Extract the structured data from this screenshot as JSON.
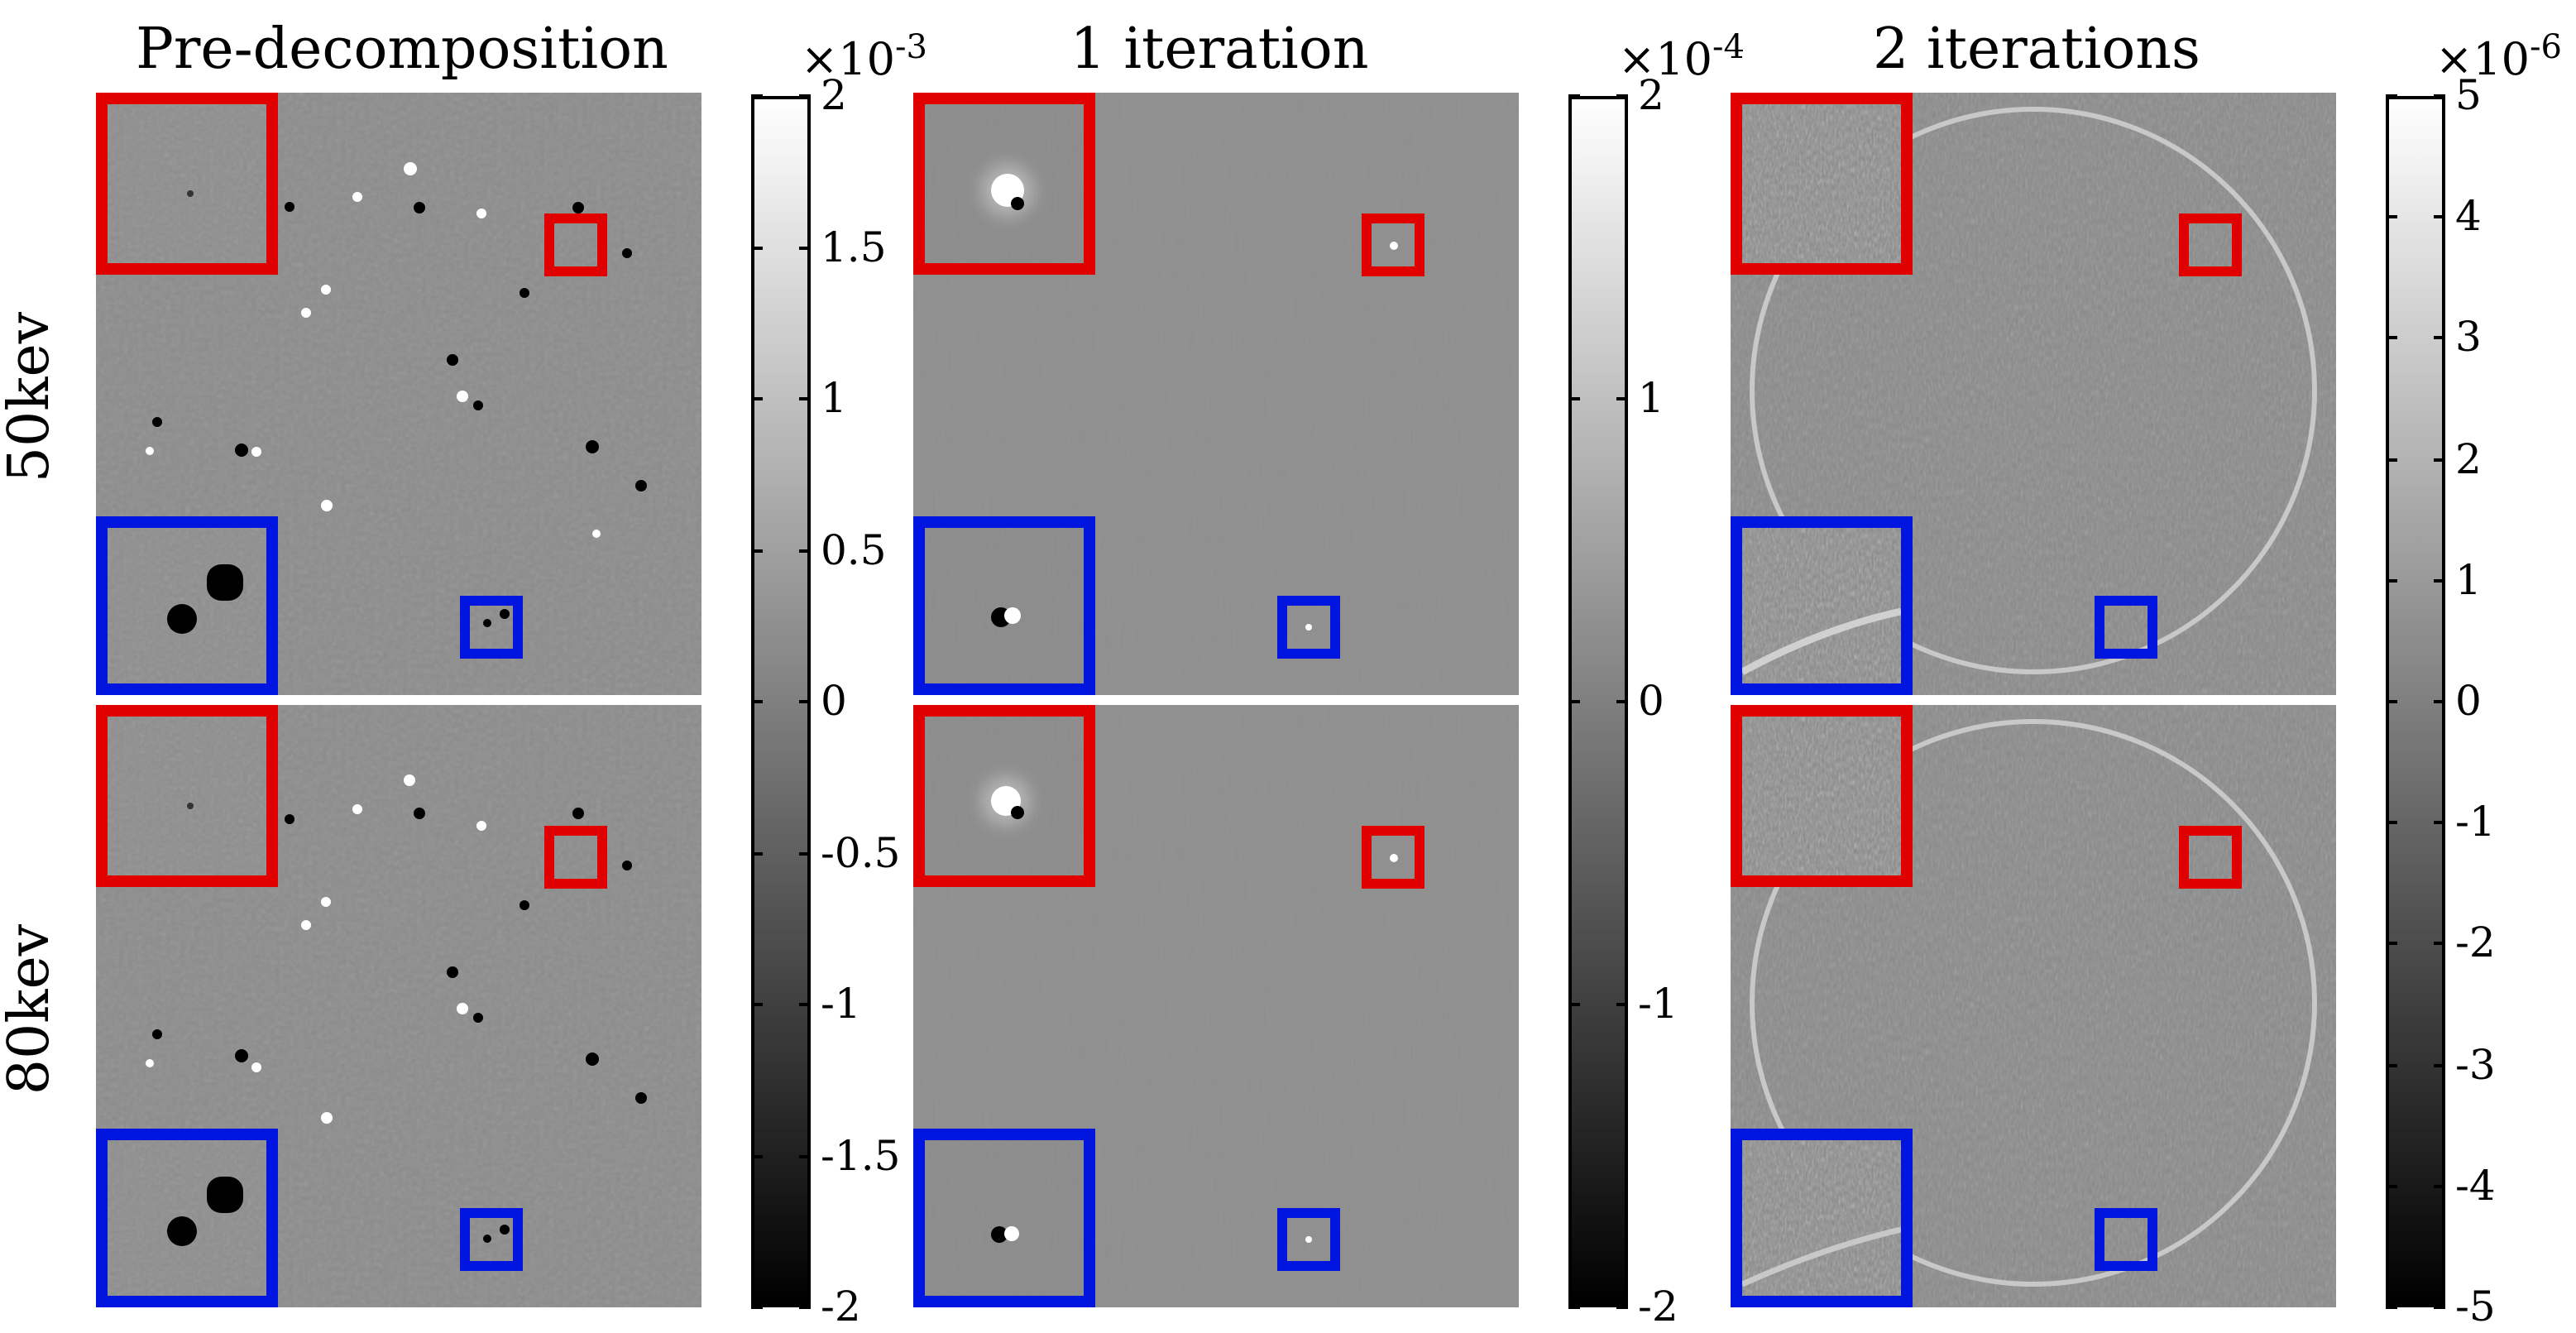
{
  "columns": [
    {
      "title": "Pre-decomposition"
    },
    {
      "title": "1 iteration"
    },
    {
      "title": "2 iterations"
    }
  ],
  "rows": [
    {
      "label": "50kev"
    },
    {
      "label": "80kev"
    }
  ],
  "colorbars": [
    {
      "exponent_base": "×10",
      "exponent_power": "-3",
      "ticks": [
        "2",
        "1.5",
        "1",
        "0.5",
        "0",
        "-0.5",
        "-1",
        "-1.5",
        "-2"
      ]
    },
    {
      "exponent_base": "×10",
      "exponent_power": "-4",
      "ticks": [
        "2",
        "1",
        "0",
        "-1",
        "-2"
      ]
    },
    {
      "exponent_base": "×10",
      "exponent_power": "-6",
      "ticks": [
        "5",
        "4",
        "3",
        "2",
        "1",
        "0",
        "-1",
        "-2",
        "-3",
        "-4",
        "-5"
      ]
    }
  ],
  "colors": {
    "background_gray": "#8a8a8a",
    "roi_top": "#e00000",
    "roi_bottom": "#0016e0",
    "colormap": "gray (black to white)"
  }
}
